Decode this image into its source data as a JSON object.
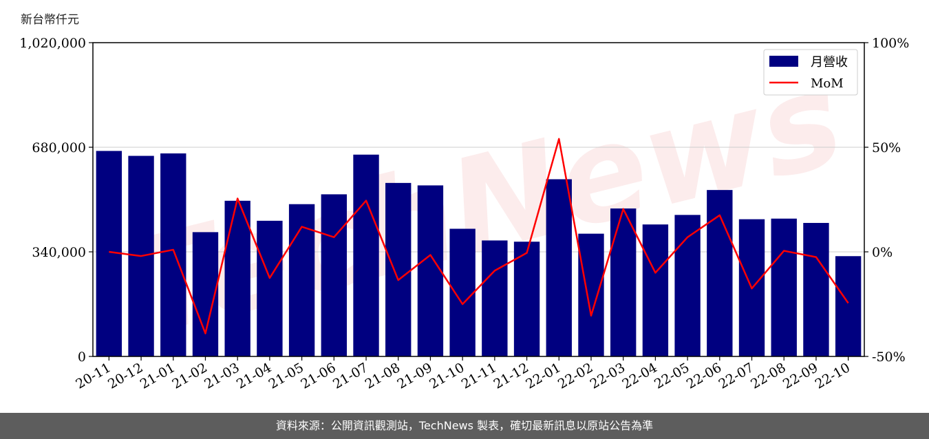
{
  "chart_data": {
    "type": "bar+line",
    "unit_label": "新台幣仟元",
    "categories": [
      "20-11",
      "20-12",
      "21-01",
      "21-02",
      "21-03",
      "21-04",
      "21-05",
      "21-06",
      "21-07",
      "21-08",
      "21-09",
      "21-10",
      "21-11",
      "21-12",
      "22-01",
      "22-02",
      "22-03",
      "22-04",
      "22-05",
      "22-06",
      "22-07",
      "22-08",
      "22-09",
      "22-10"
    ],
    "series": [
      {
        "name": "月營收",
        "type": "bar",
        "axis": "left",
        "color": "#000080",
        "values": [
          668000,
          652000,
          660000,
          404000,
          506000,
          441000,
          495000,
          527000,
          656000,
          564000,
          556000,
          415000,
          377000,
          373000,
          576000,
          399000,
          481000,
          429000,
          460000,
          541000,
          446000,
          448000,
          434000,
          326000
        ]
      },
      {
        "name": "MoM",
        "type": "line",
        "axis": "right",
        "color": "#ff0000",
        "values": [
          0,
          -2,
          1,
          -39,
          25.5,
          -12.5,
          12,
          7,
          24.5,
          -13.5,
          -1.5,
          -25,
          -9,
          -0.5,
          54,
          -30.5,
          20.5,
          -10,
          7,
          17.5,
          -17.5,
          0.5,
          -2.5,
          -24.5
        ]
      }
    ],
    "left_axis": {
      "ylim": [
        0,
        1020000
      ],
      "ticks": [
        0,
        340000,
        680000,
        1020000
      ],
      "tick_labels": [
        "0",
        "340,000",
        "680,000",
        "1,020,000"
      ]
    },
    "right_axis": {
      "ylim": [
        -50,
        100
      ],
      "ticks": [
        -50,
        0,
        50,
        100
      ],
      "tick_labels": [
        "-50%",
        "0%",
        "50%",
        "100%"
      ]
    },
    "grid": "horizontal",
    "legend_position": "top-right",
    "watermark": "TechNews"
  },
  "footer": {
    "text": "資料來源：公開資訊觀測站，TechNews 製表，確切最新訊息以原站公告為準"
  }
}
